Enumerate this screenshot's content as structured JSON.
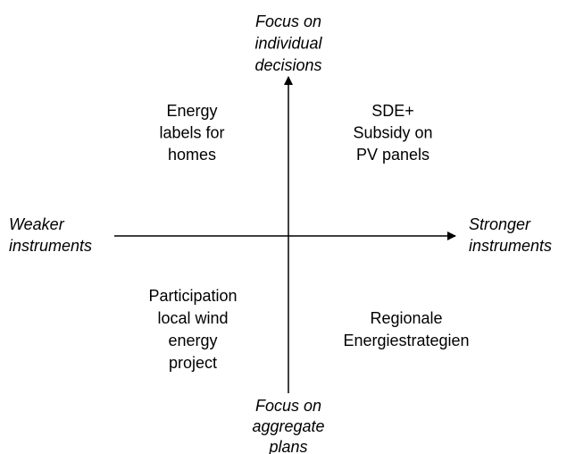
{
  "axes": {
    "top": [
      "Focus on",
      "individual",
      "decisions"
    ],
    "bottom": [
      "Focus on",
      "aggregate",
      "plans"
    ],
    "left": [
      "Weaker",
      "instruments"
    ],
    "right": [
      "Stronger",
      "instruments"
    ]
  },
  "quadrants": {
    "top_left": [
      "Energy",
      "labels for",
      "homes"
    ],
    "top_right": [
      "SDE+",
      "Subsidy on",
      "PV panels"
    ],
    "bottom_left": [
      "Participation",
      "local wind",
      "energy",
      "project"
    ],
    "bottom_right": [
      "Regionale",
      "Energiestrategien"
    ]
  }
}
